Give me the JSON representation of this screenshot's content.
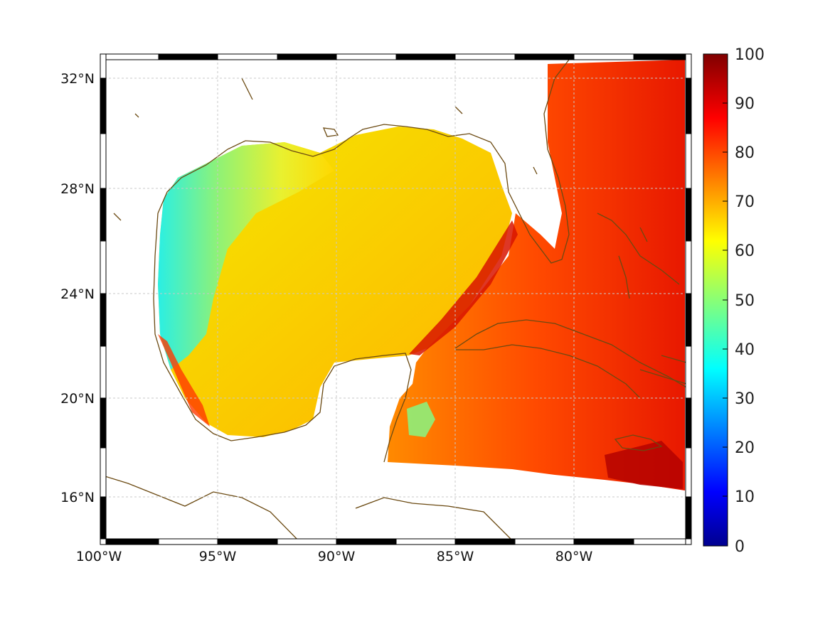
{
  "map": {
    "lon_labels": [
      "100°W",
      "95°W",
      "90°W",
      "85°W",
      "80°W"
    ],
    "lat_labels": [
      "32°N",
      "28°N",
      "24°N",
      "20°N",
      "16°N"
    ],
    "coast_color": "#6b4a12",
    "land_color": "#ffffff",
    "grid": true
  },
  "colorbar": {
    "colormap": "jet",
    "range": [
      0,
      100
    ],
    "tick_labels": [
      "100",
      "90",
      "80",
      "70",
      "60",
      "50",
      "40",
      "30",
      "20",
      "10",
      "0"
    ]
  }
}
